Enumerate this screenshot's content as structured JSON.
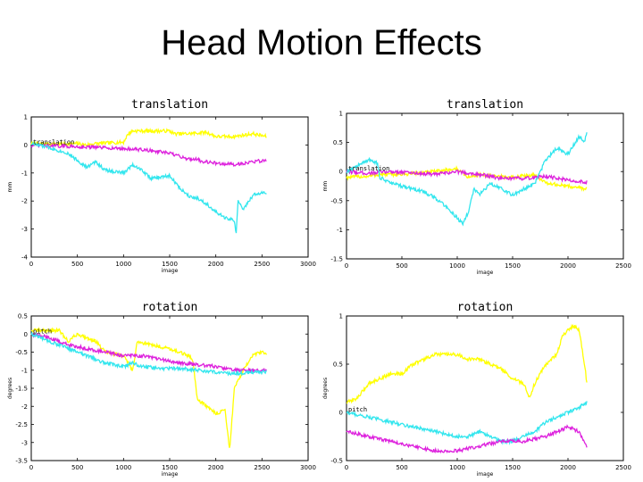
{
  "slide": {
    "title": "Head Motion Effects"
  },
  "colors": {
    "x": "#ffff00",
    "y": "#33e6ee",
    "z": "#dd22dd"
  },
  "chart_data": [
    {
      "type": "line",
      "title": "translation",
      "xlabel": "image",
      "ylabel": "mm",
      "legend": "translation",
      "xlim": [
        0,
        3000
      ],
      "ylim": [
        -4,
        1
      ],
      "xticks": [
        0,
        500,
        1000,
        1500,
        2000,
        2500,
        3000
      ],
      "yticks": [
        1,
        0,
        -1,
        -2,
        -3,
        -4
      ],
      "x_end": 2550,
      "series": [
        {
          "color": "yellow",
          "points": [
            [
              0,
              0.05
            ],
            [
              300,
              0.03
            ],
            [
              500,
              0.05
            ],
            [
              600,
              0.0
            ],
            [
              700,
              0.05
            ],
            [
              1000,
              0.1
            ],
            [
              1050,
              0.4
            ],
            [
              1100,
              0.5
            ],
            [
              1300,
              0.5
            ],
            [
              1500,
              0.5
            ],
            [
              1550,
              0.4
            ],
            [
              1700,
              0.4
            ],
            [
              1900,
              0.45
            ],
            [
              2000,
              0.3
            ],
            [
              2200,
              0.3
            ],
            [
              2400,
              0.4
            ],
            [
              2550,
              0.3
            ]
          ]
        },
        {
          "color": "magenta",
          "points": [
            [
              0,
              -0.02
            ],
            [
              400,
              -0.05
            ],
            [
              800,
              -0.1
            ],
            [
              1100,
              -0.15
            ],
            [
              1300,
              -0.2
            ],
            [
              1500,
              -0.3
            ],
            [
              1700,
              -0.5
            ],
            [
              1800,
              -0.5
            ],
            [
              1850,
              -0.6
            ],
            [
              1900,
              -0.6
            ],
            [
              2000,
              -0.65
            ],
            [
              2200,
              -0.7
            ],
            [
              2400,
              -0.6
            ],
            [
              2550,
              -0.55
            ]
          ]
        },
        {
          "color": "cyan",
          "points": [
            [
              0,
              0.05
            ],
            [
              200,
              -0.1
            ],
            [
              400,
              -0.3
            ],
            [
              600,
              -0.8
            ],
            [
              700,
              -0.6
            ],
            [
              800,
              -0.9
            ],
            [
              1000,
              -1.0
            ],
            [
              1100,
              -0.7
            ],
            [
              1200,
              -0.9
            ],
            [
              1300,
              -1.2
            ],
            [
              1500,
              -1.1
            ],
            [
              1600,
              -1.5
            ],
            [
              1700,
              -1.8
            ],
            [
              1800,
              -1.9
            ],
            [
              1900,
              -2.1
            ],
            [
              2000,
              -2.4
            ],
            [
              2100,
              -2.6
            ],
            [
              2200,
              -2.7
            ],
            [
              2220,
              -3.2
            ],
            [
              2240,
              -2.0
            ],
            [
              2300,
              -2.3
            ],
            [
              2400,
              -1.8
            ],
            [
              2500,
              -1.7
            ],
            [
              2550,
              -1.75
            ]
          ]
        }
      ]
    },
    {
      "type": "line",
      "title": "translation",
      "xlabel": "image",
      "ylabel": "mm",
      "legend": "translation",
      "xlim": [
        0,
        2500
      ],
      "ylim": [
        -1.5,
        1
      ],
      "xticks": [
        0,
        500,
        1000,
        1500,
        2000,
        2500
      ],
      "yticks": [
        1,
        0.5,
        0,
        -0.5,
        -1,
        -1.5
      ],
      "x_end": 2170,
      "series": [
        {
          "color": "yellow",
          "points": [
            [
              0,
              -0.1
            ],
            [
              200,
              -0.08
            ],
            [
              300,
              -0.05
            ],
            [
              500,
              -0.05
            ],
            [
              800,
              0.0
            ],
            [
              1000,
              0.05
            ],
            [
              1100,
              -0.1
            ],
            [
              1200,
              -0.05
            ],
            [
              1300,
              -0.08
            ],
            [
              1500,
              -0.1
            ],
            [
              1700,
              -0.05
            ],
            [
              1800,
              -0.2
            ],
            [
              2000,
              -0.25
            ],
            [
              2170,
              -0.3
            ]
          ]
        },
        {
          "color": "magenta",
          "points": [
            [
              0,
              0.0
            ],
            [
              200,
              -0.03
            ],
            [
              400,
              0.0
            ],
            [
              600,
              -0.02
            ],
            [
              800,
              -0.05
            ],
            [
              1000,
              0.0
            ],
            [
              1200,
              -0.05
            ],
            [
              1400,
              -0.12
            ],
            [
              1600,
              -0.12
            ],
            [
              1800,
              -0.08
            ],
            [
              2000,
              -0.15
            ],
            [
              2170,
              -0.18
            ]
          ]
        },
        {
          "color": "cyan",
          "points": [
            [
              0,
              0.0
            ],
            [
              100,
              0.1
            ],
            [
              200,
              0.2
            ],
            [
              280,
              0.15
            ],
            [
              300,
              -0.1
            ],
            [
              400,
              -0.2
            ],
            [
              500,
              -0.25
            ],
            [
              600,
              -0.3
            ],
            [
              700,
              -0.35
            ],
            [
              800,
              -0.45
            ],
            [
              900,
              -0.6
            ],
            [
              1000,
              -0.8
            ],
            [
              1050,
              -0.9
            ],
            [
              1100,
              -0.7
            ],
            [
              1150,
              -0.3
            ],
            [
              1200,
              -0.4
            ],
            [
              1300,
              -0.2
            ],
            [
              1400,
              -0.3
            ],
            [
              1500,
              -0.4
            ],
            [
              1600,
              -0.3
            ],
            [
              1700,
              -0.2
            ],
            [
              1800,
              0.2
            ],
            [
              1900,
              0.4
            ],
            [
              2000,
              0.3
            ],
            [
              2100,
              0.6
            ],
            [
              2150,
              0.5
            ],
            [
              2170,
              0.7
            ]
          ]
        }
      ]
    },
    {
      "type": "line",
      "title": "rotation",
      "xlabel": "image",
      "ylabel": "degrees",
      "legend": "pitch",
      "xlim": [
        0,
        3000
      ],
      "ylim": [
        -3.5,
        0.5
      ],
      "xticks": [
        0,
        500,
        1000,
        1500,
        2000,
        2500,
        3000
      ],
      "yticks": [
        0.5,
        0,
        -0.5,
        -1,
        -1.5,
        -2,
        -2.5,
        -3,
        -3.5
      ],
      "x_end": 2550,
      "series": [
        {
          "color": "yellow",
          "points": [
            [
              0,
              0.1
            ],
            [
              300,
              0.1
            ],
            [
              400,
              -0.2
            ],
            [
              500,
              0.0
            ],
            [
              700,
              -0.2
            ],
            [
              800,
              -0.5
            ],
            [
              1000,
              -0.6
            ],
            [
              1100,
              -1.0
            ],
            [
              1150,
              -0.2
            ],
            [
              1300,
              -0.3
            ],
            [
              1400,
              -0.35
            ],
            [
              1500,
              -0.4
            ],
            [
              1700,
              -0.6
            ],
            [
              1750,
              -0.7
            ],
            [
              1800,
              -1.8
            ],
            [
              1900,
              -2.0
            ],
            [
              2000,
              -2.2
            ],
            [
              2100,
              -2.1
            ],
            [
              2150,
              -3.2
            ],
            [
              2200,
              -1.5
            ],
            [
              2300,
              -1.0
            ],
            [
              2400,
              -0.6
            ],
            [
              2500,
              -0.5
            ],
            [
              2550,
              -0.55
            ]
          ]
        },
        {
          "color": "magenta",
          "points": [
            [
              0,
              0.0
            ],
            [
              200,
              -0.1
            ],
            [
              400,
              -0.3
            ],
            [
              600,
              -0.4
            ],
            [
              800,
              -0.5
            ],
            [
              1000,
              -0.6
            ],
            [
              1200,
              -0.6
            ],
            [
              1400,
              -0.7
            ],
            [
              1600,
              -0.8
            ],
            [
              1800,
              -0.85
            ],
            [
              2000,
              -0.9
            ],
            [
              2200,
              -1.0
            ],
            [
              2400,
              -1.0
            ],
            [
              2550,
              -1.0
            ]
          ]
        },
        {
          "color": "cyan",
          "points": [
            [
              0,
              0.0
            ],
            [
              200,
              -0.2
            ],
            [
              400,
              -0.4
            ],
            [
              600,
              -0.6
            ],
            [
              800,
              -0.8
            ],
            [
              1000,
              -0.9
            ],
            [
              1100,
              -0.8
            ],
            [
              1200,
              -0.9
            ],
            [
              1400,
              -0.95
            ],
            [
              1600,
              -0.95
            ],
            [
              1800,
              -1.0
            ],
            [
              2000,
              -1.05
            ],
            [
              2200,
              -1.1
            ],
            [
              2400,
              -1.05
            ],
            [
              2550,
              -1.05
            ]
          ]
        }
      ]
    },
    {
      "type": "line",
      "title": "rotation",
      "xlabel": "image",
      "ylabel": "degrees",
      "legend": "pitch",
      "xlim": [
        0,
        2500
      ],
      "ylim": [
        -0.5,
        1
      ],
      "xticks": [
        0,
        500,
        1000,
        1500,
        2000,
        2500
      ],
      "yticks": [
        1,
        0.5,
        0,
        -0.5
      ],
      "x_end": 2170,
      "series": [
        {
          "color": "yellow",
          "points": [
            [
              0,
              0.1
            ],
            [
              100,
              0.15
            ],
            [
              200,
              0.3
            ],
            [
              300,
              0.35
            ],
            [
              400,
              0.4
            ],
            [
              500,
              0.4
            ],
            [
              600,
              0.5
            ],
            [
              700,
              0.55
            ],
            [
              800,
              0.6
            ],
            [
              900,
              0.6
            ],
            [
              1000,
              0.6
            ],
            [
              1100,
              0.55
            ],
            [
              1200,
              0.55
            ],
            [
              1300,
              0.5
            ],
            [
              1400,
              0.45
            ],
            [
              1500,
              0.35
            ],
            [
              1600,
              0.3
            ],
            [
              1650,
              0.15
            ],
            [
              1700,
              0.3
            ],
            [
              1800,
              0.5
            ],
            [
              1900,
              0.6
            ],
            [
              1950,
              0.8
            ],
            [
              2000,
              0.85
            ],
            [
              2050,
              0.9
            ],
            [
              2100,
              0.85
            ],
            [
              2150,
              0.5
            ],
            [
              2170,
              0.3
            ]
          ]
        },
        {
          "color": "cyan",
          "points": [
            [
              0,
              0.0
            ],
            [
              200,
              -0.05
            ],
            [
              400,
              -0.1
            ],
            [
              600,
              -0.15
            ],
            [
              800,
              -0.2
            ],
            [
              1000,
              -0.25
            ],
            [
              1100,
              -0.25
            ],
            [
              1200,
              -0.2
            ],
            [
              1300,
              -0.25
            ],
            [
              1400,
              -0.3
            ],
            [
              1500,
              -0.3
            ],
            [
              1600,
              -0.25
            ],
            [
              1700,
              -0.2
            ],
            [
              1800,
              -0.1
            ],
            [
              1900,
              -0.05
            ],
            [
              2000,
              0.0
            ],
            [
              2100,
              0.05
            ],
            [
              2170,
              0.1
            ]
          ]
        },
        {
          "color": "magenta",
          "points": [
            [
              0,
              -0.2
            ],
            [
              200,
              -0.25
            ],
            [
              400,
              -0.3
            ],
            [
              600,
              -0.35
            ],
            [
              800,
              -0.4
            ],
            [
              1000,
              -0.4
            ],
            [
              1200,
              -0.35
            ],
            [
              1400,
              -0.3
            ],
            [
              1600,
              -0.3
            ],
            [
              1800,
              -0.25
            ],
            [
              1900,
              -0.2
            ],
            [
              2000,
              -0.15
            ],
            [
              2100,
              -0.2
            ],
            [
              2170,
              -0.35
            ]
          ]
        }
      ]
    }
  ]
}
